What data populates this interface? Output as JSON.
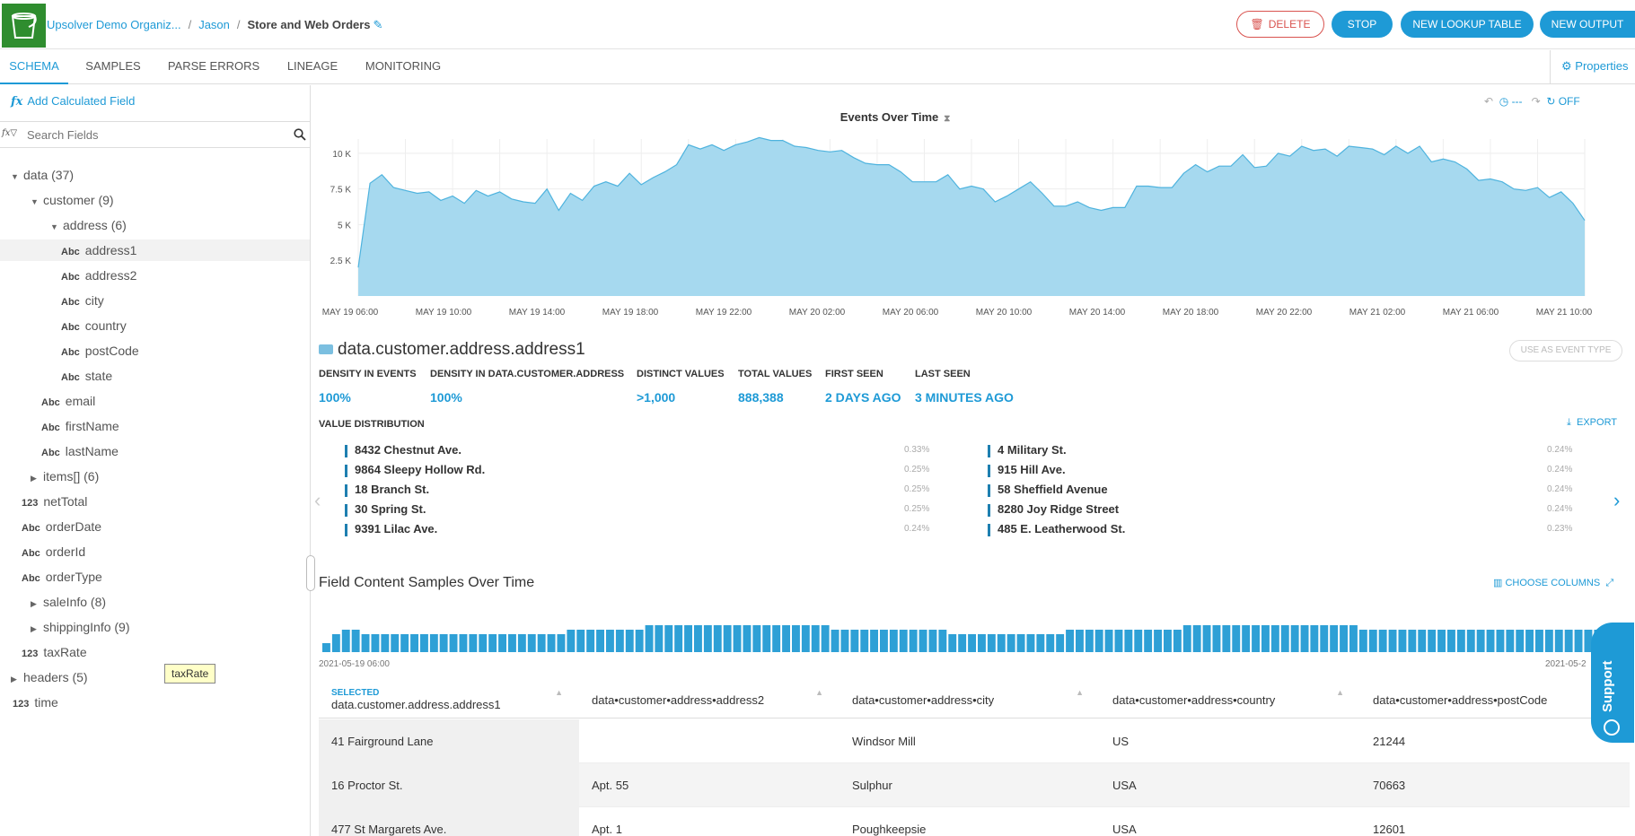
{
  "header": {
    "breadcrumb": [
      "Upsolver Demo Organiz...",
      "Jason",
      "Store and Web Orders"
    ],
    "delete_label": "DELETE",
    "stop_label": "STOP",
    "new_lookup_label": "NEW LOOKUP TABLE",
    "new_output_label": "NEW OUTPUT"
  },
  "tabs": [
    "SCHEMA",
    "SAMPLES",
    "PARSE ERRORS",
    "LINEAGE",
    "MONITORING"
  ],
  "properties_label": "Properties",
  "sidebar": {
    "add_calc_label": "Add Calculated Field",
    "search_placeholder": "Search Fields",
    "tree": [
      {
        "label": "data (37)",
        "indent": 0,
        "toggle": "open",
        "type": ""
      },
      {
        "label": "customer (9)",
        "indent": 1,
        "toggle": "open",
        "type": ""
      },
      {
        "label": "address (6)",
        "indent": 2,
        "toggle": "open",
        "type": ""
      },
      {
        "label": "address1",
        "indent": 3,
        "toggle": "",
        "type": "Abc",
        "hl": true
      },
      {
        "label": "address2",
        "indent": 3,
        "toggle": "",
        "type": "Abc"
      },
      {
        "label": "city",
        "indent": 3,
        "toggle": "",
        "type": "Abc"
      },
      {
        "label": "country",
        "indent": 3,
        "toggle": "",
        "type": "Abc"
      },
      {
        "label": "postCode",
        "indent": 3,
        "toggle": "",
        "type": "Abc"
      },
      {
        "label": "state",
        "indent": 3,
        "toggle": "",
        "type": "Abc"
      },
      {
        "label": "email",
        "indent": 2,
        "toggle": "",
        "type": "Abc"
      },
      {
        "label": "firstName",
        "indent": 2,
        "toggle": "",
        "type": "Abc"
      },
      {
        "label": "lastName",
        "indent": 2,
        "toggle": "",
        "type": "Abc"
      },
      {
        "label": "items[] (6)",
        "indent": 1,
        "toggle": "closed",
        "type": ""
      },
      {
        "label": "netTotal",
        "indent": 1,
        "toggle": "",
        "type": "123"
      },
      {
        "label": "orderDate",
        "indent": 1,
        "toggle": "",
        "type": "Abc"
      },
      {
        "label": "orderId",
        "indent": 1,
        "toggle": "",
        "type": "Abc"
      },
      {
        "label": "orderType",
        "indent": 1,
        "toggle": "",
        "type": "Abc"
      },
      {
        "label": "saleInfo (8)",
        "indent": 1,
        "toggle": "closed",
        "type": ""
      },
      {
        "label": "shippingInfo (9)",
        "indent": 1,
        "toggle": "closed",
        "type": ""
      },
      {
        "label": "taxRate",
        "indent": 1,
        "toggle": "",
        "type": "123"
      },
      {
        "label": "headers (5)",
        "indent": 0,
        "toggle": "closed",
        "type": ""
      },
      {
        "label": "time",
        "indent": 0,
        "toggle": "",
        "type": "123"
      }
    ],
    "tooltip": "taxRate"
  },
  "chart_controls": {
    "time": "---",
    "refresh": "OFF"
  },
  "chart_data": {
    "type": "area",
    "title": "Events Over Time",
    "x_tick_labels": [
      "MAY 19 06:00",
      "MAY 19 10:00",
      "MAY 19 14:00",
      "MAY 19 18:00",
      "MAY 19 22:00",
      "MAY 20 02:00",
      "MAY 20 06:00",
      "MAY 20 10:00",
      "MAY 20 14:00",
      "MAY 20 18:00",
      "MAY 20 22:00",
      "MAY 21 02:00",
      "MAY 21 06:00",
      "MAY 21 10:00"
    ],
    "y_tick_labels": [
      "2.5 K",
      "5 K",
      "7.5 K",
      "10 K"
    ],
    "y_ticks": [
      2500,
      5000,
      7500,
      10000
    ],
    "ylim": [
      0,
      11000
    ],
    "values": [
      2000,
      7900,
      8500,
      7600,
      7400,
      7200,
      7300,
      6700,
      7000,
      6500,
      7400,
      7000,
      7300,
      6800,
      6600,
      6500,
      7500,
      6000,
      7200,
      6700,
      7700,
      8000,
      7700,
      8600,
      7800,
      8300,
      8700,
      9200,
      10600,
      10300,
      10600,
      10200,
      10600,
      10800,
      11100,
      10900,
      10900,
      10500,
      10400,
      10200,
      10100,
      10200,
      9700,
      9300,
      9200,
      9200,
      8700,
      8000,
      8000,
      8000,
      8500,
      7500,
      7700,
      7500,
      6600,
      7000,
      7500,
      8000,
      7200,
      6300,
      6300,
      6600,
      6200,
      6000,
      6200,
      6200,
      7700,
      7700,
      7600,
      7600,
      8600,
      9200,
      8700,
      9100,
      9100,
      9900,
      9000,
      9100,
      10000,
      9800,
      10500,
      10200,
      10300,
      9800,
      10500,
      10400,
      10300,
      9900,
      10500,
      10000,
      10500,
      9400,
      9600,
      9400,
      8900,
      8100,
      8200,
      8000,
      7500,
      7400,
      7600,
      6900,
      7300,
      6500,
      5300
    ]
  },
  "field": {
    "name": "data.customer.address.address1",
    "use_as_event_label": "USE AS EVENT TYPE",
    "stats": [
      {
        "label": "DENSITY IN EVENTS",
        "value": "100%"
      },
      {
        "label": "DENSITY IN DATA.CUSTOMER.ADDRESS",
        "value": "100%"
      },
      {
        "label": "DISTINCT VALUES",
        "value": ">1,000"
      },
      {
        "label": "TOTAL VALUES",
        "value": "888,388"
      },
      {
        "label": "FIRST SEEN",
        "value": "2 DAYS AGO"
      },
      {
        "label": "LAST SEEN",
        "value": "3 MINUTES AGO"
      }
    ],
    "value_distribution_label": "VALUE DISTRIBUTION",
    "export_label": "EXPORT",
    "distribution": [
      {
        "value": "8432 Chestnut Ave.",
        "pct": "0.33%"
      },
      {
        "value": "9864 Sleepy Hollow Rd.",
        "pct": "0.25%"
      },
      {
        "value": "18 Branch St.",
        "pct": "0.25%"
      },
      {
        "value": "30 Spring St.",
        "pct": "0.25%"
      },
      {
        "value": "9391 Lilac Ave.",
        "pct": "0.24%"
      },
      {
        "value": "4 Military St.",
        "pct": "0.24%"
      },
      {
        "value": "915 Hill Ave.",
        "pct": "0.24%"
      },
      {
        "value": "58 Sheffield Avenue",
        "pct": "0.24%"
      },
      {
        "value": "8280 Joy Ridge Street",
        "pct": "0.24%"
      },
      {
        "value": "485 E. Leatherwood St.",
        "pct": "0.23%"
      }
    ]
  },
  "samples": {
    "title": "Field Content Samples Over Time",
    "choose_columns_label": "CHOOSE COLUMNS",
    "start_label": "2021-05-19 06:00",
    "end_label": "2021-05-2",
    "mini_values": [
      2,
      4,
      5,
      5,
      4,
      4,
      4,
      4,
      4,
      4,
      4,
      4,
      4,
      4,
      4,
      4,
      4,
      4,
      4,
      4,
      4,
      4,
      4,
      4,
      4,
      5,
      5,
      5,
      5,
      5,
      5,
      5,
      5,
      6,
      6,
      6,
      6,
      6,
      6,
      6,
      6,
      6,
      6,
      6,
      6,
      6,
      6,
      6,
      6,
      6,
      6,
      6,
      5,
      5,
      5,
      5,
      5,
      5,
      5,
      5,
      5,
      5,
      5,
      5,
      4,
      4,
      4,
      4,
      4,
      4,
      4,
      4,
      4,
      4,
      4,
      4,
      5,
      5,
      5,
      5,
      5,
      5,
      5,
      5,
      5,
      5,
      5,
      5,
      6,
      6,
      6,
      6,
      6,
      6,
      6,
      6,
      6,
      6,
      6,
      6,
      6,
      6,
      6,
      6,
      6,
      6,
      5,
      5,
      5,
      5,
      5,
      5,
      5,
      5,
      5,
      5,
      5,
      5,
      5,
      5,
      5,
      5,
      5,
      5,
      5,
      5,
      5,
      5,
      5,
      5,
      5,
      5,
      5,
      5
    ],
    "selected_label": "SELECTED",
    "columns": [
      "data.customer.address.address1",
      "data•customer•address•address2",
      "data•customer•address•city",
      "data•customer•address•country",
      "data•customer•address•postCode"
    ],
    "rows": [
      [
        "41 Fairground Lane",
        "",
        "Windsor Mill",
        "US",
        "21244"
      ],
      [
        "16 Proctor St.",
        "Apt. 55",
        "Sulphur",
        "USA",
        "70663"
      ],
      [
        "477 St Margarets Ave.",
        "Apt. 1",
        "Poughkeepsie",
        "USA",
        "12601"
      ]
    ]
  },
  "support_label": "Support"
}
